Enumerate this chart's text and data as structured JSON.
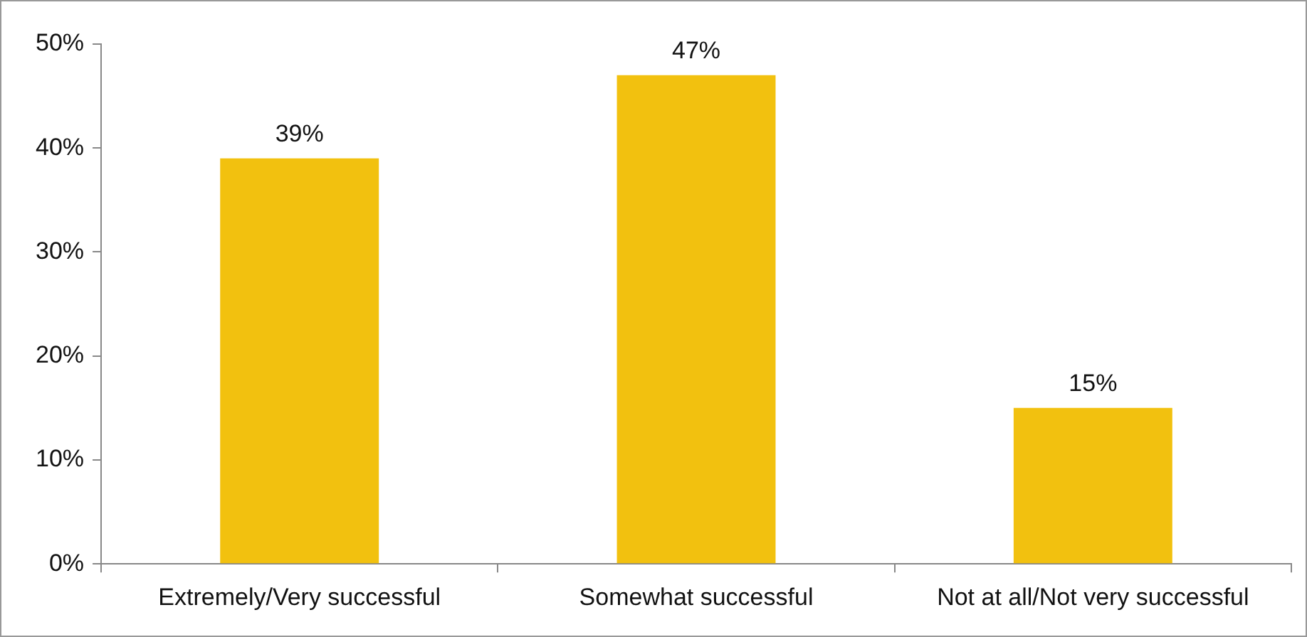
{
  "chart_data": {
    "type": "bar",
    "categories": [
      "Extremely/Very successful",
      "Somewhat successful",
      "Not at all/Not very successful"
    ],
    "values": [
      39,
      47,
      15
    ],
    "color": "#f2c10f",
    "value_labels": [
      "39%",
      "47%",
      "15%"
    ],
    "ylim": [
      0,
      50
    ],
    "yticks": [
      {
        "value": 0,
        "label": "0%"
      },
      {
        "value": 10,
        "label": "10%"
      },
      {
        "value": 20,
        "label": "20%"
      },
      {
        "value": 30,
        "label": "30%"
      },
      {
        "value": 40,
        "label": "40%"
      },
      {
        "value": 50,
        "label": "50%"
      }
    ],
    "grid": false,
    "legend": false
  }
}
